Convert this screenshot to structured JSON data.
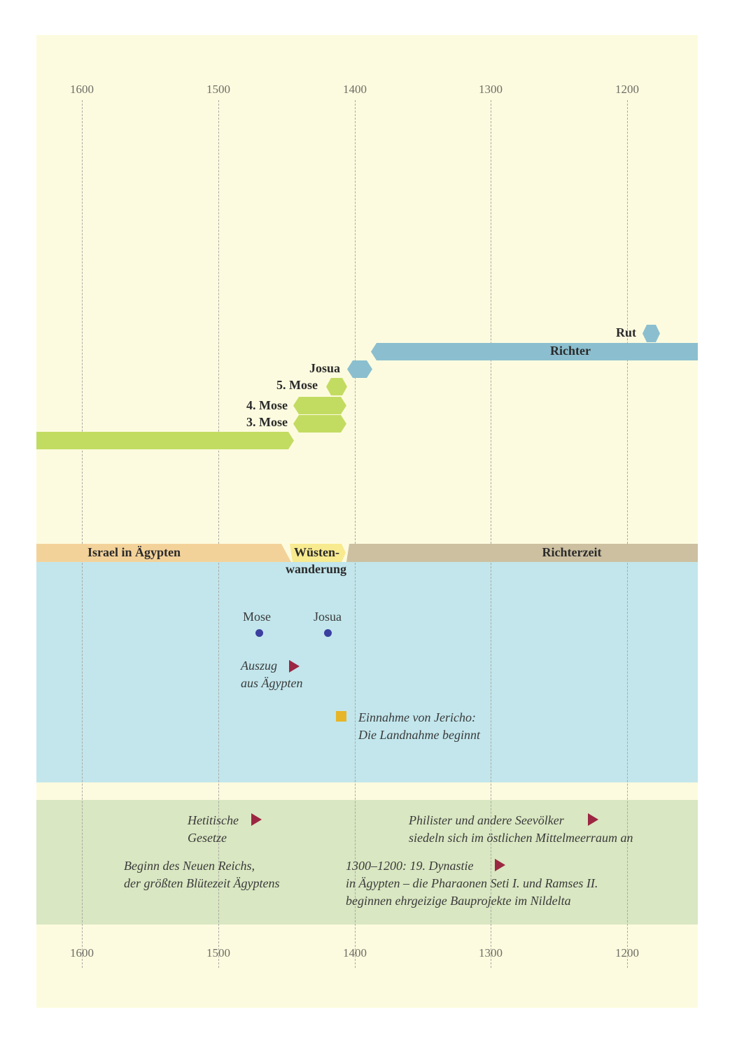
{
  "axis": {
    "years": [
      "1600",
      "1500",
      "1400",
      "1300",
      "1200"
    ]
  },
  "books": {
    "rut": "Rut",
    "richter": "Richter",
    "josua": "Josua",
    "mose5": "5. Mose",
    "mose4": "4. Mose",
    "mose3": "3. Mose"
  },
  "periods": {
    "egypt": "Israel in Ägypten",
    "wilderness_1": "Wüsten-",
    "wilderness_2": "wanderung",
    "judges": "Richterzeit"
  },
  "people": {
    "moses": "Mose",
    "joshua": "Josua"
  },
  "israel_events": {
    "exodus_1": "Auszug",
    "exodus_2": "aus Ägypten",
    "jericho_1": "Einnahme von Jericho:",
    "jericho_2": "Die Landnahme beginnt"
  },
  "world_events": {
    "hittite_1": "Hetitische",
    "hittite_2": "Gesetze",
    "philistines_1": "Philister und andere Seevölker",
    "philistines_2": "siedeln sich im östlichen Mittelmeerraum an",
    "new_kingdom_1": "Beginn des Neuen Reichs,",
    "new_kingdom_2": "der größten Blütezeit Ägyptens",
    "dynasty_1": "1300–1200: 19. Dynastie",
    "dynasty_2": "in Ägypten – die Pharaonen Seti I. und Ramses II.",
    "dynasty_3": "beginnen ehrgeizige Bauprojekte im Nildelta"
  },
  "colors": {
    "background": "#fdfbdf",
    "book_green": "#c2dc62",
    "book_blue": "#8bbfcf",
    "period_egypt": "#f3d29a",
    "period_wilderness": "#f8ea8f",
    "period_judges": "#ccc0a1",
    "israel_band": "#c2e6ec",
    "world_band": "#d9e7c2",
    "person_dot": "#3b3fa0",
    "event_marker": "#9b2742",
    "jericho_marker": "#e7b528"
  }
}
